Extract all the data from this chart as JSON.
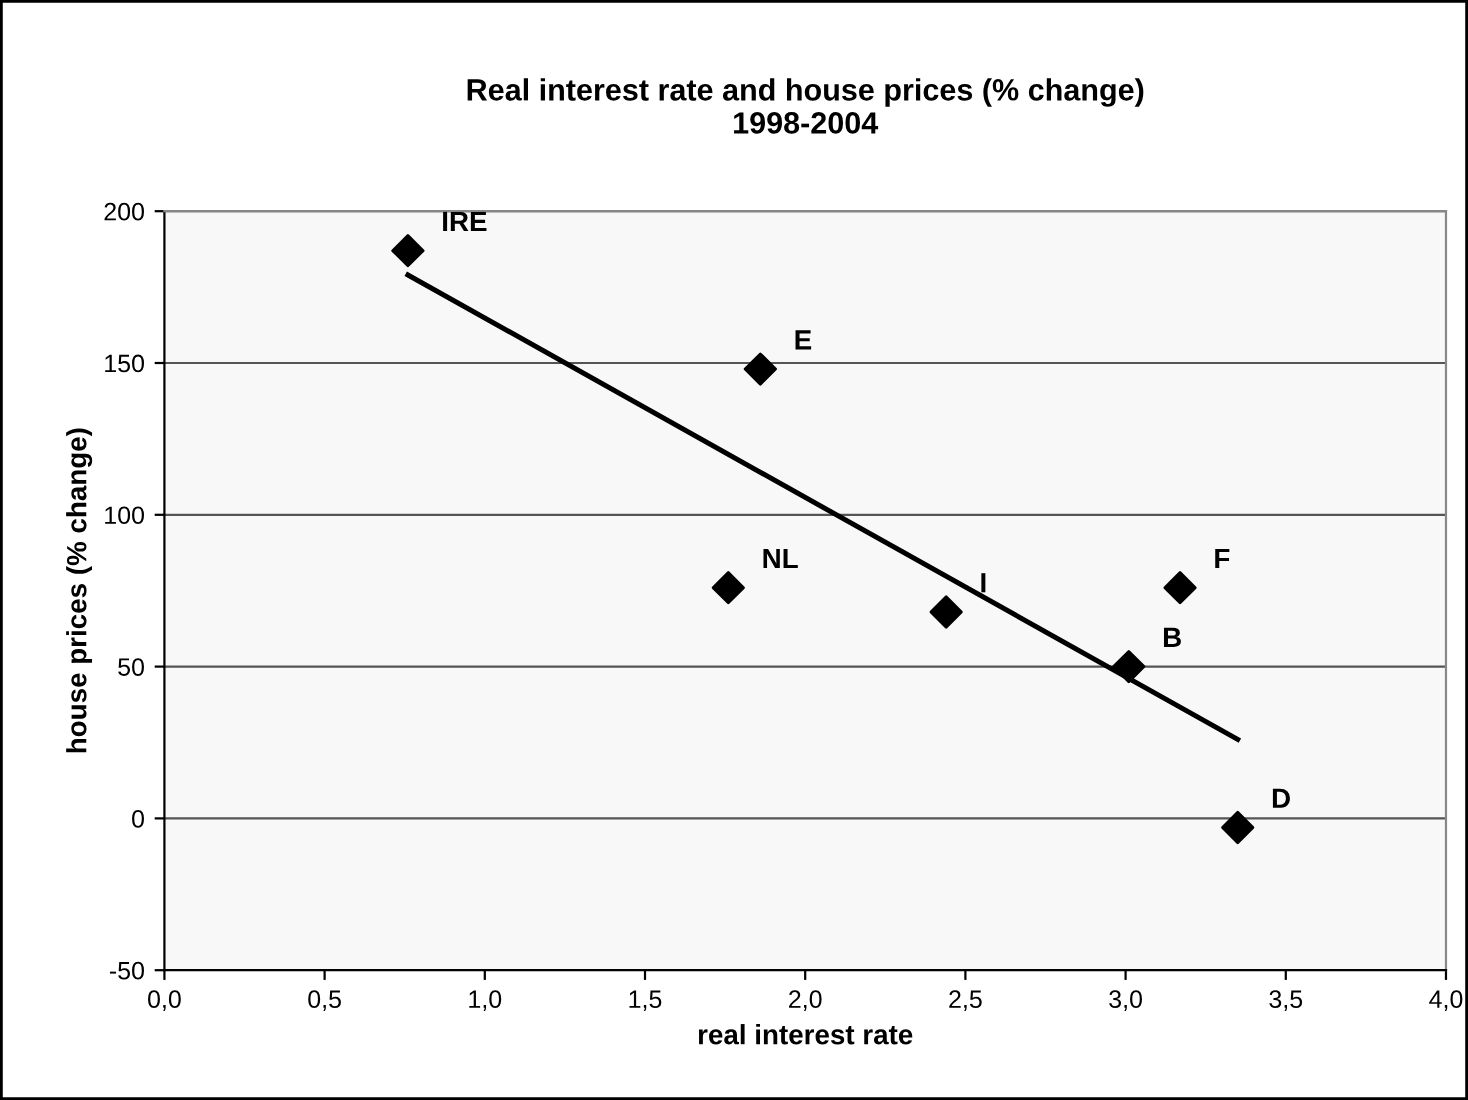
{
  "chart_data": {
    "type": "scatter",
    "title": "Real interest rate and house prices (% change)\n1998-2004",
    "xlabel": "real interest rate",
    "ylabel": "house prices (% change)",
    "series": [
      {
        "color": "#000000",
        "marker": "diamond",
        "x": [
          0.76,
          1.86,
          1.76,
          2.44,
          3.17,
          3.01,
          3.35
        ],
        "values": [
          187,
          148,
          76,
          68,
          76,
          50,
          -3
        ]
      },
      {
        "type": "line",
        "color": "#000000",
        "marker": "none",
        "x": [
          0.76,
          3.35
        ],
        "values": [
          179,
          26
        ]
      }
    ],
    "annotations": [
      {
        "text": "IRE",
        "x": 0.76,
        "y": 187
      },
      {
        "text": "E",
        "x": 1.86,
        "y": 148
      },
      {
        "text": "NL",
        "x": 1.76,
        "y": 76
      },
      {
        "text": "I",
        "x": 2.44,
        "y": 68
      },
      {
        "text": "F",
        "x": 3.17,
        "y": 76
      },
      {
        "text": "B",
        "x": 3.01,
        "y": 50
      },
      {
        "text": "D",
        "x": 3.35,
        "y": -3
      }
    ],
    "xlim": [
      0,
      4
    ],
    "xticks": [
      {
        "value": 0,
        "label": "0,0"
      },
      {
        "value": 0.5,
        "label": "0,5"
      },
      {
        "value": 1,
        "label": "1,0"
      },
      {
        "value": 1.5,
        "label": "1,5"
      },
      {
        "value": 2,
        "label": "2,0"
      },
      {
        "value": 2.5,
        "label": "2,5"
      },
      {
        "value": 3,
        "label": "3,0"
      },
      {
        "value": 3.5,
        "label": "3,5"
      },
      {
        "value": 4,
        "label": "4,0"
      }
    ],
    "ylim": [
      -50,
      200
    ],
    "yticks": [
      -50,
      0,
      50,
      100,
      150,
      200
    ],
    "grid": "y",
    "legend": false
  }
}
